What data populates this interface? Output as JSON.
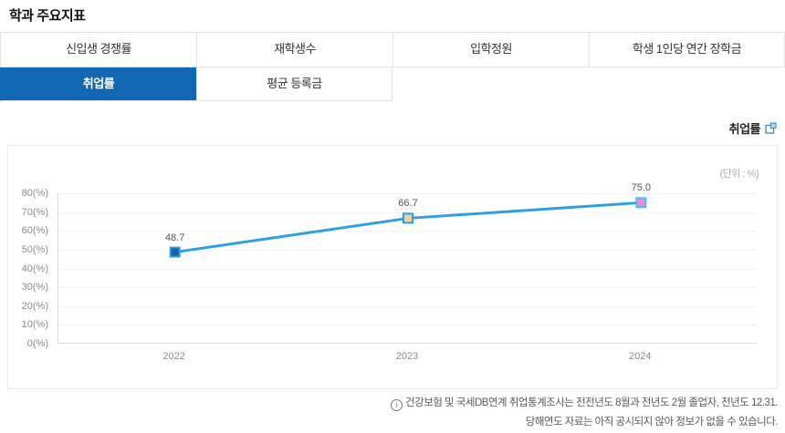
{
  "page": {
    "title": "학과 주요지표"
  },
  "tabs": {
    "row1": [
      {
        "label": "신입생 경쟁률",
        "selected": false
      },
      {
        "label": "재학생수",
        "selected": false
      },
      {
        "label": "입학정원",
        "selected": false
      },
      {
        "label": "학생 1인당 연간 장학금",
        "selected": false
      }
    ],
    "row2": [
      {
        "label": "취업률",
        "selected": true
      },
      {
        "label": "평균 등록금",
        "selected": false
      }
    ],
    "selected_bg_color": "#1268b3"
  },
  "chart_header": {
    "title": "취업률",
    "icon": "export-chart-icon",
    "icon_color": "#4a8fd0"
  },
  "chart_data": {
    "type": "line",
    "title": "취업률",
    "unit_label": "(단위 : %)",
    "categories": [
      "2022",
      "2023",
      "2024"
    ],
    "values": [
      48.7,
      66.7,
      75.0
    ],
    "value_labels": [
      "48.7",
      "66.7",
      "75.0"
    ],
    "ylim": [
      0,
      80
    ],
    "y_tick_step": 10,
    "y_tick_labels": [
      "0(%)",
      "10(%)",
      "20(%)",
      "30(%)",
      "40(%)",
      "50(%)",
      "60(%)",
      "70(%)",
      "80(%)"
    ],
    "grid": true,
    "legend": "none",
    "line_color": "#2f9fe3",
    "marker_fill_colors": [
      "#1a5fa8",
      "#f2cfa2",
      "#fb82d9"
    ],
    "marker_stroke_colors": [
      "#2f9fe3",
      "#2f9fe3",
      "#35c8f0"
    ]
  },
  "footnote": {
    "info_icon_glyph": "i",
    "line1": "건강보험 및 국세DB연계 취업통계조사는 전전년도 8월과 전년도 2월 졸업자, 전년도 12.31.",
    "line2": "당해연도 자료는 아직 공시되지 않아 정보가 없을 수 있습니다."
  }
}
